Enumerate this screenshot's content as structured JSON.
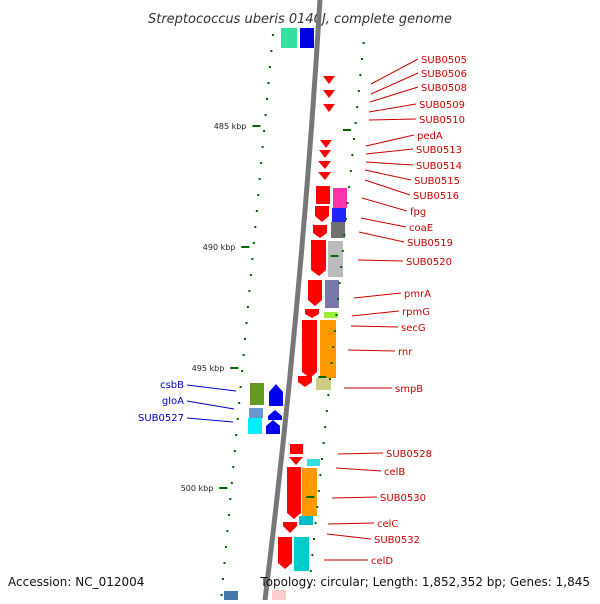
{
  "title": "Streptococcus uberis 0140J, complete genome",
  "footer": {
    "accession": "Accession: NC_012004",
    "topology": "Topology: circular; Length: 1,852,352 bp; Genes: 1,845"
  },
  "kbp_ticks": [
    {
      "label": "485 kbp"
    },
    {
      "label": "490 kbp"
    },
    {
      "label": "495 kbp"
    },
    {
      "label": "500 kbp"
    }
  ],
  "colors": {
    "forward_strand": "#ff0000",
    "reverse_strand": "#0000ff",
    "right_label": "#cc0000",
    "left_label": "#0000cc",
    "axis": "#777777",
    "tick": "#006600"
  },
  "right_genes": [
    {
      "label": "SUB0505"
    },
    {
      "label": "SUB0506"
    },
    {
      "label": "SUB0508"
    },
    {
      "label": "SUB0509"
    },
    {
      "label": "SUB0510"
    },
    {
      "label": "pedA"
    },
    {
      "label": "SUB0513"
    },
    {
      "label": "SUB0514"
    },
    {
      "label": "SUB0515"
    },
    {
      "label": "SUB0516"
    },
    {
      "label": "fpg"
    },
    {
      "label": "coaE"
    },
    {
      "label": "SUB0519"
    },
    {
      "label": "SUB0520"
    },
    {
      "label": "pmrA"
    },
    {
      "label": "rpmG"
    },
    {
      "label": "secG"
    },
    {
      "label": "rnr"
    },
    {
      "label": "smpB"
    },
    {
      "label": "SUB0528"
    },
    {
      "label": "celB"
    },
    {
      "label": "SUB0530"
    },
    {
      "label": "celC"
    },
    {
      "label": "SUB0532"
    },
    {
      "label": "celD"
    }
  ],
  "left_genes": [
    {
      "label": "csbB"
    },
    {
      "label": "gloA"
    },
    {
      "label": "SUB0527"
    }
  ]
}
